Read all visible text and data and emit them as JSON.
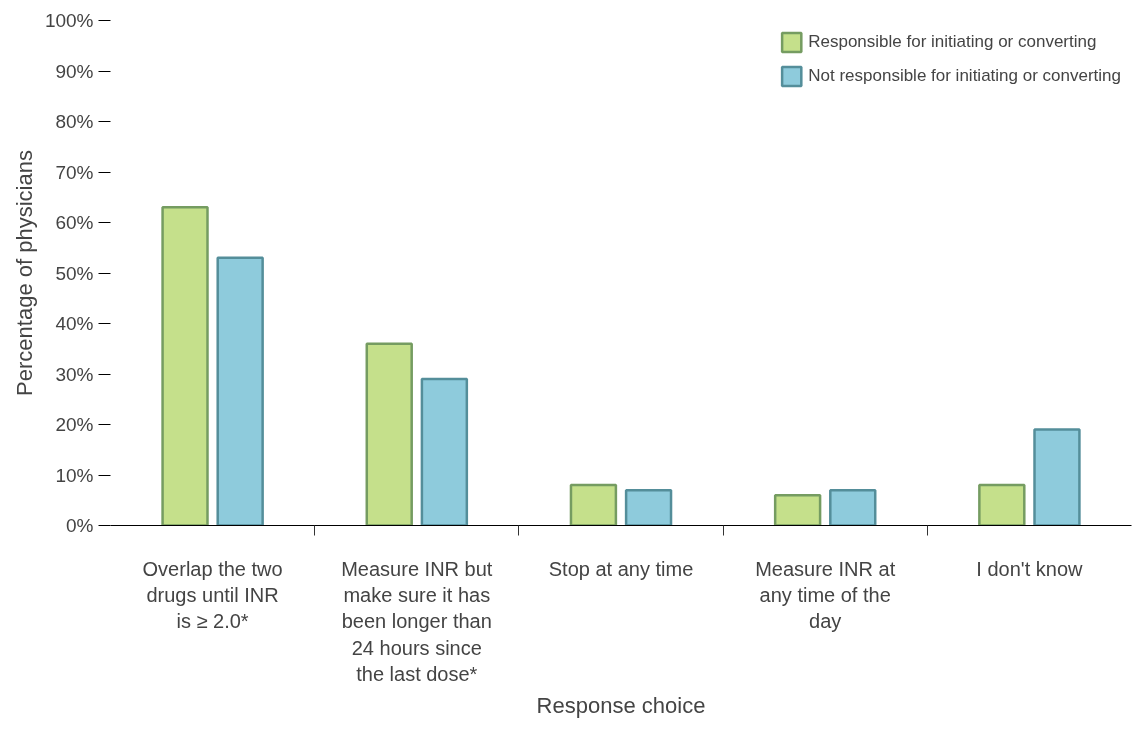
{
  "chart_data": {
    "type": "bar",
    "xlabel": "Response choice",
    "ylabel": "Percentage of physicians",
    "categories": [
      "Overlap the two drugs until INR is ≥ 2.0*",
      "Measure INR but make sure it has been longer than 24 hours since the last dose*",
      "Stop at any time",
      "Measure INR at any time of the day",
      "I don't know"
    ],
    "series": [
      {
        "name": "Responsible for initiating or converting",
        "color": "#c5e08b",
        "values": [
          63,
          36,
          8,
          6,
          8
        ]
      },
      {
        "name": "Not responsible for initiating or converting",
        "color": "#8ecbdc",
        "values": [
          53,
          29,
          7,
          7,
          19
        ]
      }
    ],
    "ylim": [
      0,
      100
    ],
    "yticks": [
      {
        "value": 0,
        "label": "0%"
      },
      {
        "value": 10,
        "label": "10%"
      },
      {
        "value": 20,
        "label": "20%"
      },
      {
        "value": 30,
        "label": "30%"
      },
      {
        "value": 40,
        "label": "40%"
      },
      {
        "value": 50,
        "label": "50%"
      },
      {
        "value": 60,
        "label": "60%"
      },
      {
        "value": 70,
        "label": "70%"
      },
      {
        "value": 80,
        "label": "80%"
      },
      {
        "value": 90,
        "label": "90%"
      },
      {
        "value": 100,
        "label": "100%"
      }
    ],
    "grid": false,
    "legend": "top right"
  }
}
